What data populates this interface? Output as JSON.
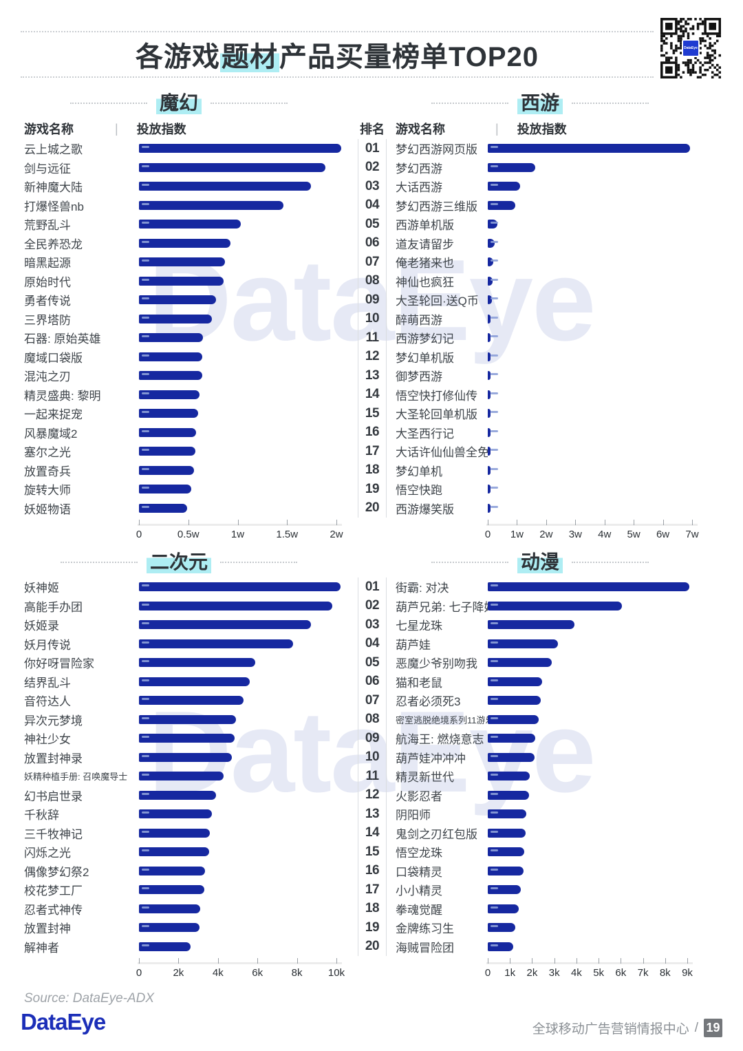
{
  "header": {
    "title_prefix": "各游戏",
    "title_highlight": "题材",
    "title_suffix": "产品买量榜单TOP20",
    "qr_logo": "DataEye"
  },
  "watermark": "DataEye",
  "colors": {
    "bar": "#1628A0",
    "highlight_cyan": "#AEEDF3",
    "logo_blue": "#1B2EB8",
    "watermark": "#E6E9F5"
  },
  "chart_data": [
    {
      "type": "bar",
      "orientation": "horizontal",
      "section": "魔幻",
      "columns": {
        "game": "游戏名称",
        "divider": "|",
        "index": "投放指数"
      },
      "unit": "w",
      "xlim": [
        0,
        2
      ],
      "tick_labels": [
        "0",
        "0.5w",
        "1w",
        "1.5w",
        "2w"
      ],
      "items": [
        {
          "name": "云上城之歌",
          "value": 2.05
        },
        {
          "name": "剑与远征",
          "value": 1.89
        },
        {
          "name": "新神魔大陆",
          "value": 1.74
        },
        {
          "name": "打爆怪兽nb",
          "value": 1.46
        },
        {
          "name": "荒野乱斗",
          "value": 1.03
        },
        {
          "name": "全民养恐龙",
          "value": 0.93
        },
        {
          "name": "暗黑起源",
          "value": 0.87
        },
        {
          "name": "原始时代",
          "value": 0.86
        },
        {
          "name": "勇者传说",
          "value": 0.78
        },
        {
          "name": "三界塔防",
          "value": 0.74
        },
        {
          "name": "石器: 原始英雄",
          "value": 0.65
        },
        {
          "name": "魔域口袋版",
          "value": 0.64
        },
        {
          "name": "混沌之刃",
          "value": 0.64
        },
        {
          "name": "精灵盛典: 黎明",
          "value": 0.61
        },
        {
          "name": "一起来捉宠",
          "value": 0.6
        },
        {
          "name": "风暴魔域2",
          "value": 0.58
        },
        {
          "name": "塞尔之光",
          "value": 0.57
        },
        {
          "name": "放置奇兵",
          "value": 0.56
        },
        {
          "name": "旋转大师",
          "value": 0.53
        },
        {
          "name": "妖姬物语",
          "value": 0.49
        }
      ]
    },
    {
      "type": "bar",
      "orientation": "horizontal",
      "section": "西游",
      "columns": {
        "rank": "排名",
        "game": "游戏名称",
        "divider": "|",
        "index": "投放指数"
      },
      "unit": "w",
      "xlim": [
        0,
        7
      ],
      "tick_labels": [
        "0",
        "1w",
        "2w",
        "3w",
        "4w",
        "5w",
        "6w",
        "7w"
      ],
      "items": [
        {
          "rank": "01",
          "name": "梦幻西游网页版",
          "value": 6.92
        },
        {
          "rank": "02",
          "name": "梦幻西游",
          "value": 1.63
        },
        {
          "rank": "03",
          "name": "大话西游",
          "value": 1.11
        },
        {
          "rank": "04",
          "name": "梦幻西游三维版",
          "value": 0.94
        },
        {
          "rank": "05",
          "name": "西游单机版",
          "value": 0.33
        },
        {
          "rank": "06",
          "name": "道友请留步",
          "value": 0.23
        },
        {
          "rank": "07",
          "name": "俺老猪来也",
          "value": 0.2
        },
        {
          "rank": "08",
          "name": "神仙也疯狂",
          "value": 0.17
        },
        {
          "rank": "09",
          "name": "大圣轮回·送Q币",
          "value": 0.13
        },
        {
          "rank": "10",
          "name": "醉萌西游",
          "value": 0.1
        },
        {
          "rank": "11",
          "name": "西游梦幻记",
          "value": 0.09
        },
        {
          "rank": "12",
          "name": "梦幻单机版",
          "value": 0.06
        },
        {
          "rank": "13",
          "name": "御梦西游",
          "value": 0.055
        },
        {
          "rank": "14",
          "name": "悟空快打修仙传",
          "value": 0.05
        },
        {
          "rank": "15",
          "name": "大圣轮回单机版",
          "value": 0.05
        },
        {
          "rank": "16",
          "name": "大圣西行记",
          "value": 0.045
        },
        {
          "rank": "17",
          "name": "大话许仙仙兽全免",
          "value": 0.04
        },
        {
          "rank": "18",
          "name": "梦幻单机",
          "value": 0.035
        },
        {
          "rank": "19",
          "name": "悟空快跑",
          "value": 0.03
        },
        {
          "rank": "20",
          "name": "西游爆笑版",
          "value": 0.025
        }
      ]
    },
    {
      "type": "bar",
      "orientation": "horizontal",
      "section": "二次元",
      "unit": "k",
      "xlim": [
        0,
        10
      ],
      "tick_labels": [
        "0",
        "2k",
        "4k",
        "6k",
        "8k",
        "10k"
      ],
      "items": [
        {
          "name": "妖神姬",
          "value": 10.2
        },
        {
          "name": "高能手办团",
          "value": 9.8
        },
        {
          "name": "妖姬录",
          "value": 8.7
        },
        {
          "name": "妖月传说",
          "value": 7.8
        },
        {
          "name": "你好呀冒险家",
          "value": 5.9
        },
        {
          "name": "结界乱斗",
          "value": 5.6
        },
        {
          "name": "音符达人",
          "value": 5.3
        },
        {
          "name": "异次元梦境",
          "value": 4.9
        },
        {
          "name": "神社少女",
          "value": 4.85
        },
        {
          "name": "放置封神录",
          "value": 4.7
        },
        {
          "name": "妖精种植手册: 召唤魔导士",
          "value": 4.3
        },
        {
          "name": "幻书启世录",
          "value": 3.9
        },
        {
          "name": "千秋辞",
          "value": 3.7
        },
        {
          "name": "三千牧神记",
          "value": 3.6
        },
        {
          "name": "闪烁之光",
          "value": 3.55
        },
        {
          "name": "偶像梦幻祭2",
          "value": 3.35
        },
        {
          "name": "校花梦工厂",
          "value": 3.3
        },
        {
          "name": "忍者式神传",
          "value": 3.1
        },
        {
          "name": "放置封神",
          "value": 3.05
        },
        {
          "name": "解神者",
          "value": 2.6
        }
      ]
    },
    {
      "type": "bar",
      "orientation": "horizontal",
      "section": "动漫",
      "unit": "k",
      "xlim": [
        0,
        9
      ],
      "tick_labels": [
        "0",
        "1k",
        "2k",
        "3k",
        "4k",
        "5k",
        "6k",
        "7k",
        "8k",
        "9k"
      ],
      "items": [
        {
          "rank": "01",
          "name": "街霸: 对决",
          "value": 9.1
        },
        {
          "rank": "02",
          "name": "葫芦兄弟: 七子降妖",
          "value": 6.05
        },
        {
          "rank": "03",
          "name": "七星龙珠",
          "value": 3.9
        },
        {
          "rank": "04",
          "name": "葫芦娃",
          "value": 3.15
        },
        {
          "rank": "05",
          "name": "恶魔少爷别吻我",
          "value": 2.9
        },
        {
          "rank": "06",
          "name": "猫和老鼠",
          "value": 2.45
        },
        {
          "rank": "07",
          "name": "忍者必须死3",
          "value": 2.4
        },
        {
          "rank": "08",
          "name": "密室逃脱绝境系列11游乐园",
          "value": 2.3
        },
        {
          "rank": "09",
          "name": "航海王: 燃烧意志",
          "value": 2.15
        },
        {
          "rank": "10",
          "name": "葫芦娃冲冲冲",
          "value": 2.1
        },
        {
          "rank": "11",
          "name": "精灵新世代",
          "value": 1.9
        },
        {
          "rank": "12",
          "name": "火影忍者",
          "value": 1.85
        },
        {
          "rank": "13",
          "name": "阴阳师",
          "value": 1.75
        },
        {
          "rank": "14",
          "name": "鬼剑之刃红包版",
          "value": 1.7
        },
        {
          "rank": "15",
          "name": "悟空龙珠",
          "value": 1.65
        },
        {
          "rank": "16",
          "name": "口袋精灵",
          "value": 1.6
        },
        {
          "rank": "17",
          "name": "小小精灵",
          "value": 1.5
        },
        {
          "rank": "18",
          "name": "拳魂觉醒",
          "value": 1.4
        },
        {
          "rank": "19",
          "name": "金牌练习生",
          "value": 1.25
        },
        {
          "rank": "20",
          "name": "海贼冒险团",
          "value": 1.15
        }
      ]
    }
  ],
  "footer": {
    "source": "Source: DataEye-ADX",
    "logo": "DataEye",
    "center_label": "全球移动广告营销情报中心",
    "separator": "/",
    "page": "19"
  }
}
